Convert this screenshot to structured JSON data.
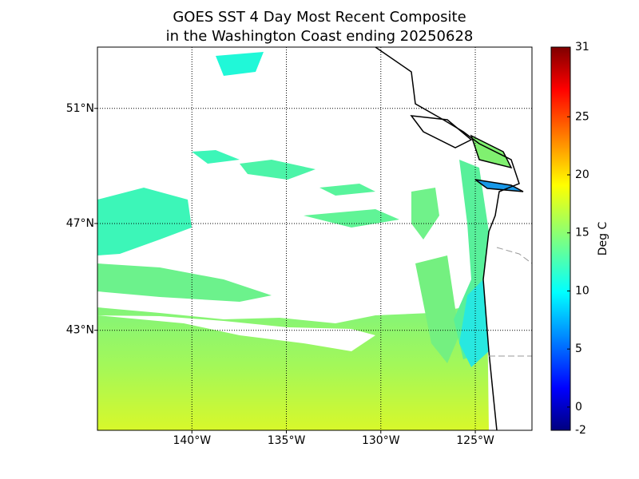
{
  "chart_data": {
    "type": "map",
    "title": [
      "GOES SST 4 Day Most Recent Composite",
      "in the Washington Coast ending 20250628"
    ],
    "xlim": [
      -145,
      -122
    ],
    "ylim": [
      39,
      53
    ],
    "xticks": [
      {
        "value": -140,
        "label": "140°W"
      },
      {
        "value": -135,
        "label": "135°W"
      },
      {
        "value": -130,
        "label": "130°W"
      },
      {
        "value": -125,
        "label": "125°W"
      }
    ],
    "yticks": [
      {
        "value": 43,
        "label": "43°N"
      },
      {
        "value": 47,
        "label": "47°N"
      },
      {
        "value": 51,
        "label": "51°N"
      }
    ],
    "grid": true,
    "colorbar": {
      "label": "Deg C",
      "lim": [
        -2,
        31
      ],
      "ticks": [
        -2,
        0,
        5,
        10,
        15,
        20,
        25,
        31
      ]
    }
  }
}
